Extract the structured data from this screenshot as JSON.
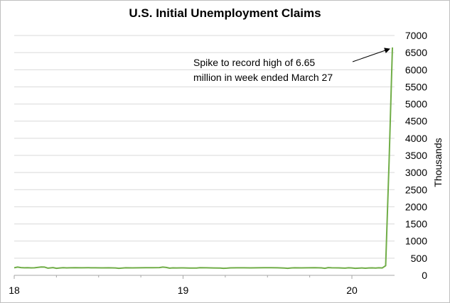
{
  "chart_data": {
    "type": "line",
    "title": "U.S. Initial Unemployment Claims",
    "ylabel": "Thousands",
    "xlabel": "",
    "ylim": [
      0,
      7000
    ],
    "yticks": [
      0,
      500,
      1000,
      1500,
      2000,
      2500,
      3000,
      3500,
      4000,
      4500,
      5000,
      5500,
      6000,
      6500,
      7000
    ],
    "xticks": [
      "18",
      "19",
      "20"
    ],
    "y_axis_position": "right",
    "grid": true,
    "line_color": "#70ad47",
    "annotation": {
      "text_lines": [
        "Spike to record high of 6.65",
        "million in week ended March 27"
      ],
      "target": {
        "x": 2020.24,
        "y": 6650
      }
    },
    "series": [
      {
        "x": [
          2018.0,
          2018.02,
          2018.04,
          2018.06,
          2018.08,
          2018.1,
          2018.12,
          2018.16,
          2018.18,
          2018.2,
          2018.23,
          2018.25,
          2018.27,
          2018.29,
          2018.31,
          2018.33,
          2018.36,
          2018.4,
          2018.44,
          2018.48,
          2018.52,
          2018.56,
          2018.6,
          2018.62,
          2018.64,
          2018.66,
          2018.7,
          2018.74,
          2018.78,
          2018.82,
          2018.86,
          2018.88,
          2018.9,
          2018.92,
          2018.94,
          2018.96,
          2019.0,
          2019.04,
          2019.08,
          2019.1,
          2019.14,
          2019.18,
          2019.22,
          2019.24,
          2019.26,
          2019.28,
          2019.32,
          2019.36,
          2019.4,
          2019.44,
          2019.48,
          2019.52,
          2019.56,
          2019.6,
          2019.62,
          2019.64,
          2019.66,
          2019.7,
          2019.74,
          2019.78,
          2019.82,
          2019.84,
          2019.86,
          2019.88,
          2019.92,
          2019.96,
          2019.98,
          2020.0,
          2020.02,
          2020.04,
          2020.06,
          2020.08,
          2020.1,
          2020.12,
          2020.14,
          2020.16,
          2020.18,
          2020.2,
          2020.22,
          2020.24
        ],
        "values": [
          220,
          240,
          225,
          220,
          222,
          218,
          220,
          245,
          240,
          210,
          225,
          205,
          215,
          222,
          218,
          220,
          221,
          219,
          222,
          220,
          218,
          220,
          216,
          205,
          212,
          220,
          218,
          220,
          222,
          221,
          225,
          240,
          230,
          210,
          218,
          215,
          218,
          214,
          212,
          222,
          220,
          216,
          212,
          205,
          210,
          218,
          220,
          219,
          218,
          220,
          222,
          221,
          219,
          212,
          205,
          215,
          220,
          218,
          220,
          222,
          218,
          205,
          225,
          220,
          218,
          210,
          220,
          215,
          205,
          210,
          215,
          208,
          215,
          218,
          212,
          220,
          215,
          282,
          3307,
          6650
        ]
      }
    ]
  }
}
